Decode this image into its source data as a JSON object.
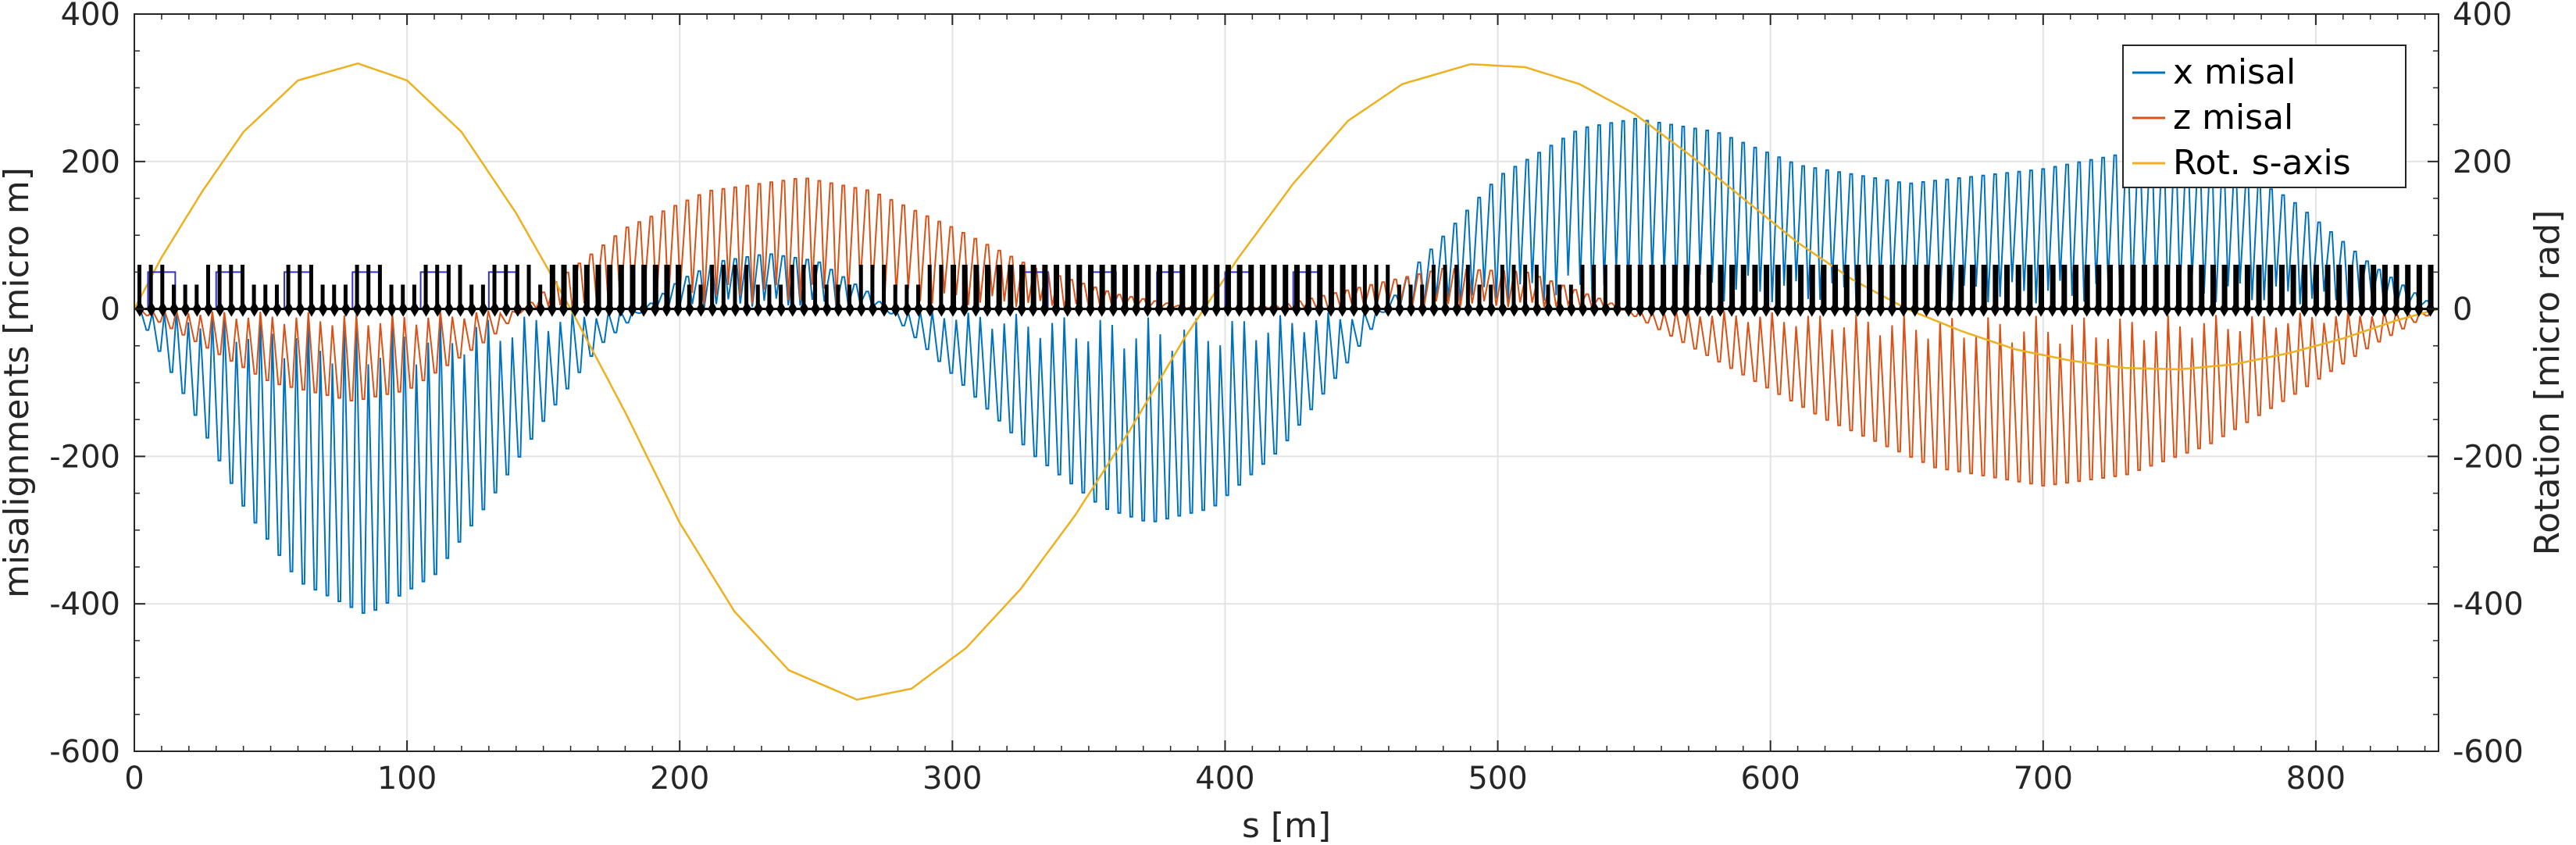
{
  "chart_data": {
    "type": "line",
    "title": "",
    "xlabel": "s [m]",
    "ylabel_left": "misalignments [micro m]",
    "ylabel_right": "Rotation [micro rad]",
    "xlim": [
      0,
      845
    ],
    "ylim_left": [
      -600,
      400
    ],
    "ylim_right": [
      -600,
      400
    ],
    "x_ticks": [
      0,
      100,
      200,
      300,
      400,
      500,
      600,
      700,
      800
    ],
    "y_ticks_left": [
      -600,
      -400,
      -200,
      0,
      200,
      400
    ],
    "y_ticks_right": [
      -600,
      -400,
      -200,
      0,
      200,
      400
    ],
    "x_tick_labels": [
      "0",
      "100",
      "200",
      "300",
      "400",
      "500",
      "600",
      "700",
      "800"
    ],
    "y_tick_labels_left": [
      "-600",
      "-400",
      "-200",
      "0",
      "200",
      "400"
    ],
    "y_tick_labels_right": [
      "-600",
      "-400",
      "-200",
      "0",
      "200",
      "400"
    ],
    "grid": true,
    "legend_position": "top-right",
    "series": [
      {
        "name": "x misal",
        "color": "#0072BD",
        "style": "oscillating between a smooth envelope and ~0",
        "envelope": {
          "x": [
            0,
            20,
            40,
            60,
            85,
            110,
            130,
            150,
            170,
            190,
            200,
            215,
            232,
            250,
            270,
            300,
            330,
            355,
            372,
            395,
            420,
            445,
            470,
            500,
            530,
            550,
            580,
            610,
            650,
            700,
            735,
            760,
            790,
            820,
            845
          ],
          "y": [
            0,
            -130,
            -270,
            -370,
            -415,
            -360,
            -260,
            -150,
            -50,
            10,
            40,
            65,
            75,
            65,
            20,
            -90,
            -200,
            -270,
            -290,
            -270,
            -190,
            -70,
            60,
            180,
            245,
            258,
            240,
            195,
            170,
            190,
            215,
            205,
            150,
            60,
            0
          ]
        }
      },
      {
        "name": "z misal",
        "color": "#D95319",
        "style": "oscillating between a smooth envelope and ~0",
        "envelope": {
          "x": [
            0,
            20,
            50,
            80,
            100,
            130,
            155,
            180,
            210,
            245,
            270,
            300,
            330,
            360,
            390,
            420,
            450,
            480,
            510,
            540,
            580,
            620,
            660,
            700,
            730,
            760,
            790,
            820,
            845
          ],
          "y": [
            0,
            -40,
            -100,
            -125,
            -110,
            -40,
            40,
            110,
            160,
            178,
            160,
            110,
            55,
            20,
            0,
            5,
            30,
            55,
            50,
            10,
            -70,
            -150,
            -215,
            -240,
            -225,
            -185,
            -120,
            -50,
            0
          ]
        }
      },
      {
        "name": "Rot. s-axis",
        "color": "#EDB120",
        "style": "smooth line",
        "x": [
          0,
          10,
          25,
          40,
          60,
          82,
          100,
          120,
          140,
          160,
          180,
          200,
          220,
          240,
          265,
          285,
          305,
          325,
          345,
          365,
          385,
          405,
          425,
          445,
          465,
          490,
          510,
          530,
          550,
          570,
          590,
          610,
          630,
          650,
          670,
          690,
          710,
          730,
          750,
          770,
          790,
          810,
          830,
          845
        ],
        "y": [
          0,
          70,
          160,
          240,
          310,
          333,
          310,
          240,
          130,
          0,
          -140,
          -290,
          -410,
          -490,
          -530,
          -515,
          -460,
          -380,
          -280,
          -165,
          -40,
          70,
          170,
          255,
          305,
          332,
          328,
          305,
          265,
          210,
          150,
          90,
          40,
          0,
          -30,
          -55,
          -70,
          -80,
          -82,
          -75,
          -60,
          -40,
          -15,
          0
        ]
      },
      {
        "name": "",
        "color": "#000000",
        "style": "lattice element markers along zero line",
        "marker_height_left_units": 60,
        "element_spacing_m": 4.2,
        "cell_period_m": 26.4,
        "dense_regions_m": [
          [
            150,
            200
          ],
          [
            300,
            450
          ],
          [
            540,
            845
          ]
        ]
      },
      {
        "name": "",
        "color": "#3333CC",
        "style": "short blue segments near zero line",
        "segments_x_ranges_m": [
          [
            5,
            15
          ],
          [
            30,
            40
          ],
          [
            55,
            65
          ],
          [
            80,
            90
          ],
          [
            105,
            115
          ],
          [
            130,
            140
          ],
          [
            325,
            335
          ],
          [
            350,
            360
          ],
          [
            375,
            385
          ],
          [
            400,
            410
          ],
          [
            425,
            435
          ]
        ]
      }
    ],
    "legend": [
      {
        "label": "x misal",
        "color": "#0072BD"
      },
      {
        "label": "z misal",
        "color": "#D95319"
      },
      {
        "label": "Rot. s-axis",
        "color": "#EDB120"
      }
    ]
  }
}
